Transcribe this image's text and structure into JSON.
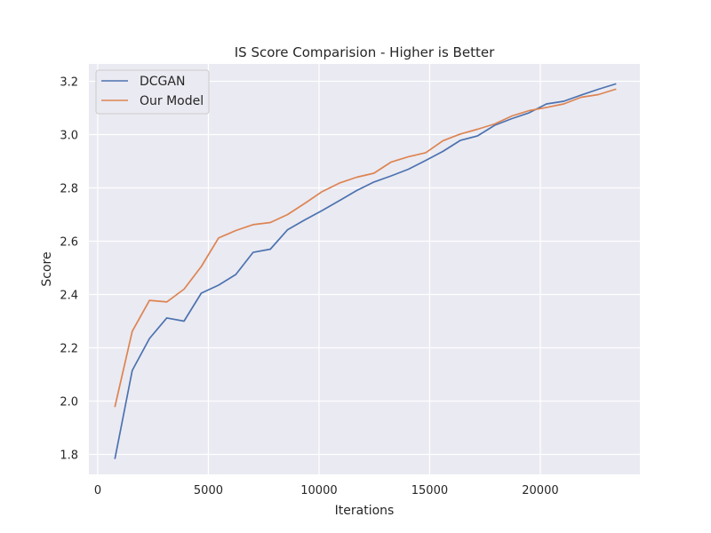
{
  "chart_data": {
    "type": "line",
    "title": "IS Score Comparision - Higher is Better",
    "xlabel": "Iterations",
    "ylabel": "Score",
    "xlim": [
      -400,
      24500
    ],
    "ylim": [
      1.725,
      3.265
    ],
    "xticks": [
      0,
      5000,
      10000,
      15000,
      20000
    ],
    "yticks": [
      1.8,
      2.0,
      2.2,
      2.4,
      2.6,
      2.8,
      3.0,
      3.2
    ],
    "ytick_labels": [
      "1.8",
      "2.0",
      "2.2",
      "2.4",
      "2.6",
      "2.8",
      "3.0",
      "3.2"
    ],
    "grid": true,
    "legend_position": "top-left",
    "x": [
      780,
      1560,
      2340,
      3120,
      3900,
      4680,
      5460,
      6240,
      7020,
      7800,
      8580,
      9360,
      10140,
      10920,
      11700,
      12480,
      13260,
      14040,
      14820,
      15600,
      16380,
      17160,
      17940,
      18720,
      19500,
      20280,
      21060,
      21840,
      22620,
      23400
    ],
    "series": [
      {
        "name": "DCGAN",
        "color": "#4c72b0",
        "values": [
          1.785,
          2.115,
          2.235,
          2.312,
          2.3,
          2.405,
          2.435,
          2.475,
          2.558,
          2.57,
          2.643,
          2.68,
          2.715,
          2.752,
          2.79,
          2.822,
          2.845,
          2.87,
          2.903,
          2.937,
          2.978,
          2.995,
          3.035,
          3.06,
          3.082,
          3.115,
          3.125,
          3.148,
          3.17,
          3.19
        ]
      },
      {
        "name": "Our Model",
        "color": "#dd8452",
        "values": [
          1.98,
          2.262,
          2.378,
          2.372,
          2.42,
          2.505,
          2.612,
          2.64,
          2.662,
          2.67,
          2.7,
          2.742,
          2.786,
          2.818,
          2.84,
          2.855,
          2.897,
          2.917,
          2.932,
          2.977,
          3.002,
          3.02,
          3.04,
          3.07,
          3.09,
          3.102,
          3.115,
          3.14,
          3.15,
          3.17
        ]
      }
    ]
  }
}
